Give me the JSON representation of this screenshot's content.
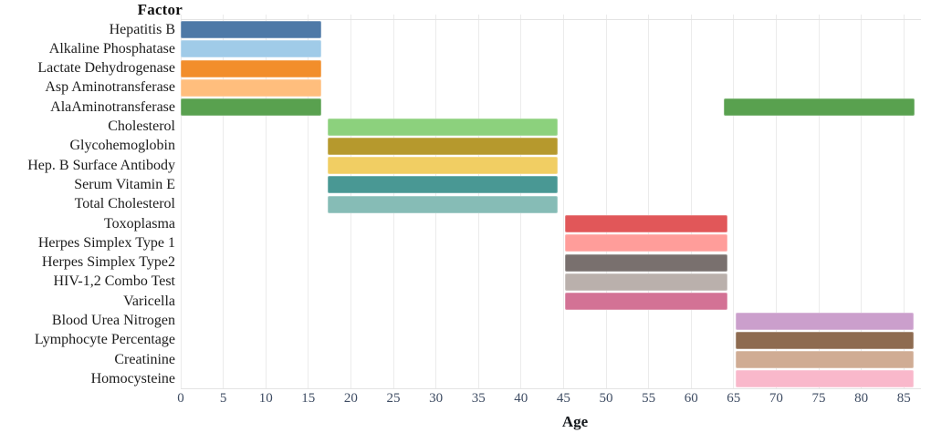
{
  "chart_data": {
    "type": "bar",
    "orientation": "horizontal",
    "y_axis_title": "Factor",
    "xlabel": "Age",
    "x_ticks": [
      0,
      5,
      10,
      15,
      20,
      25,
      30,
      35,
      40,
      45,
      50,
      55,
      60,
      65,
      70,
      75,
      80,
      85
    ],
    "xlim": [
      0,
      87
    ],
    "grid": "vertical-light",
    "grid_color": "#ebebeb",
    "tick_label_color": "#3E4C63",
    "legend": "none",
    "rows": [
      {
        "label": "Hepatitis B",
        "color": "#4E79A7",
        "segments": [
          [
            0,
            16.5
          ]
        ]
      },
      {
        "label": "Alkaline Phosphatase",
        "color": "#A0CBE8",
        "segments": [
          [
            0,
            16.5
          ]
        ]
      },
      {
        "label": "Lactate Dehydrogenase",
        "color": "#F28E2B",
        "segments": [
          [
            0,
            16.5
          ]
        ]
      },
      {
        "label": "Asp Aminotransferase",
        "color": "#FFBE7D",
        "segments": [
          [
            0,
            16.5
          ]
        ]
      },
      {
        "label": "AlaAminotransferase",
        "color": "#59A14F",
        "segments": [
          [
            0,
            16.5
          ],
          [
            63.8,
            86.3
          ]
        ]
      },
      {
        "label": "Cholesterol",
        "color": "#8CD17D",
        "segments": [
          [
            17.3,
            44.3
          ]
        ]
      },
      {
        "label": "Glycohemoglobin",
        "color": "#B6992D",
        "segments": [
          [
            17.3,
            44.3
          ]
        ]
      },
      {
        "label": "Hep. B Surface Antibody",
        "color": "#F1CE63",
        "segments": [
          [
            17.3,
            44.3
          ]
        ]
      },
      {
        "label": "Serum Vitamin E",
        "color": "#499894",
        "segments": [
          [
            17.3,
            44.3
          ]
        ]
      },
      {
        "label": "Total Cholesterol",
        "color": "#86BCB6",
        "segments": [
          [
            17.3,
            44.3
          ]
        ]
      },
      {
        "label": "Toxoplasma",
        "color": "#E15759",
        "segments": [
          [
            45.2,
            64.3
          ]
        ]
      },
      {
        "label": "Herpes Simplex Type 1",
        "color": "#FF9D9A",
        "segments": [
          [
            45.2,
            64.3
          ]
        ]
      },
      {
        "label": "Herpes Simplex Type2",
        "color": "#79706E",
        "segments": [
          [
            45.2,
            64.3
          ]
        ]
      },
      {
        "label": "HIV-1,2 Combo Test",
        "color": "#BAB0AC",
        "segments": [
          [
            45.2,
            64.3
          ]
        ]
      },
      {
        "label": "Varicella",
        "color": "#D37295",
        "segments": [
          [
            45.2,
            64.3
          ]
        ]
      },
      {
        "label": "Blood Urea Nitrogen",
        "color": "#CB9FCC",
        "segments": [
          [
            65.2,
            86.2
          ]
        ]
      },
      {
        "label": "Lymphocyte Percentage",
        "color": "#8E6B50",
        "segments": [
          [
            65.2,
            86.2
          ]
        ]
      },
      {
        "label": "Creatinine",
        "color": "#D0AC94",
        "segments": [
          [
            65.2,
            86.2
          ]
        ]
      },
      {
        "label": "Homocysteine",
        "color": "#F9B8CB",
        "segments": [
          [
            65.2,
            86.2
          ]
        ]
      }
    ]
  }
}
